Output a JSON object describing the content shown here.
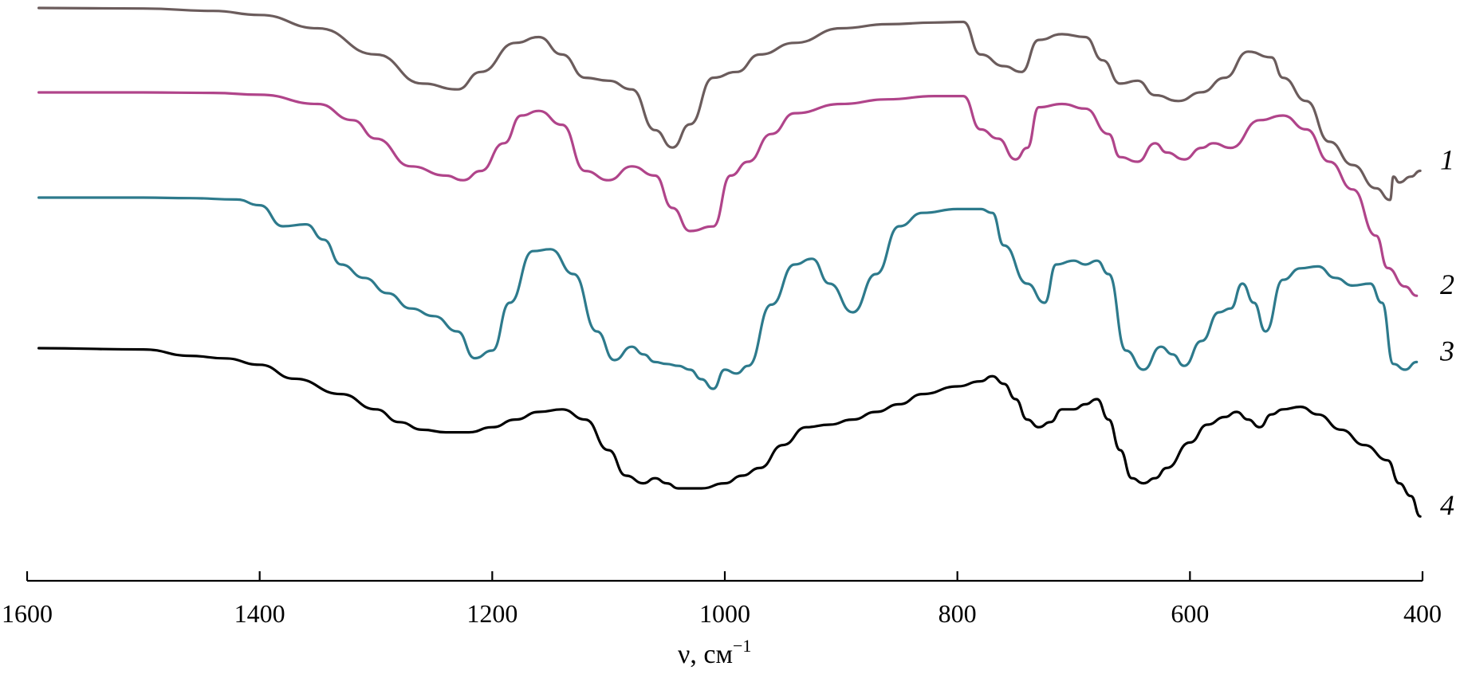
{
  "chart_data": {
    "type": "line",
    "xlabel": "ν, см",
    "xlabel_sup": "−1",
    "x_reversed": true,
    "xlim": [
      1600,
      400
    ],
    "ticks": [
      1600,
      1400,
      1200,
      1000,
      800,
      600,
      400
    ],
    "tick_labels": [
      "1600",
      "1400",
      "1200",
      "1000",
      "800",
      "600",
      "400"
    ],
    "y_axis_shown": false,
    "series": [
      {
        "name": "1",
        "color": "#6b5c5c",
        "x": [
          1590,
          1500,
          1440,
          1400,
          1350,
          1300,
          1260,
          1230,
          1210,
          1180,
          1160,
          1140,
          1120,
          1100,
          1080,
          1060,
          1045,
          1030,
          1010,
          990,
          970,
          940,
          900,
          860,
          820,
          795,
          780,
          760,
          745,
          730,
          710,
          690,
          675,
          660,
          645,
          630,
          610,
          590,
          570,
          550,
          530,
          520,
          500,
          480,
          460,
          440,
          428,
          425,
          420,
          410,
          402
        ],
        "y": [
          0,
          0.1,
          0.5,
          1.2,
          3.5,
          8,
          13,
          14,
          11,
          6,
          5,
          8,
          12,
          12.5,
          14,
          21,
          24,
          20,
          12,
          11,
          8,
          6,
          3.5,
          2.8,
          2.5,
          2.4,
          8,
          10,
          11,
          5.5,
          4.5,
          5,
          9,
          13,
          12.5,
          15,
          16,
          14.5,
          12,
          7.5,
          8.5,
          12,
          16,
          23,
          27,
          31,
          33,
          29,
          30,
          29,
          28
        ]
      },
      {
        "name": "2",
        "color": "#b0448a",
        "x": [
          1590,
          1500,
          1440,
          1400,
          1350,
          1320,
          1300,
          1270,
          1240,
          1225,
          1210,
          1190,
          1175,
          1160,
          1140,
          1120,
          1100,
          1080,
          1060,
          1045,
          1030,
          1010,
          995,
          980,
          960,
          940,
          900,
          860,
          820,
          795,
          780,
          765,
          750,
          740,
          730,
          710,
          690,
          670,
          660,
          645,
          630,
          620,
          605,
          590,
          580,
          565,
          540,
          520,
          500,
          480,
          460,
          440,
          430,
          415,
          405
        ],
        "y": [
          0,
          0,
          0.1,
          0.5,
          2.5,
          6,
          10,
          16,
          18,
          19,
          17,
          11,
          5,
          4,
          7,
          17,
          19,
          16,
          18,
          25,
          30,
          29,
          18,
          15,
          9,
          4.5,
          2.5,
          1.5,
          0.8,
          0.8,
          8,
          10,
          14.5,
          12,
          3.2,
          2.5,
          3.5,
          9,
          14,
          15,
          11,
          13,
          14.5,
          12,
          11,
          12,
          6,
          5,
          8,
          15,
          21,
          31,
          38,
          42,
          44
        ]
      },
      {
        "name": "3",
        "color": "#2d7a8c",
        "x": [
          1590,
          1500,
          1460,
          1420,
          1400,
          1380,
          1360,
          1345,
          1330,
          1310,
          1290,
          1270,
          1250,
          1230,
          1215,
          1200,
          1185,
          1165,
          1150,
          1130,
          1110,
          1095,
          1080,
          1070,
          1060,
          1050,
          1040,
          1030,
          1020,
          1010,
          1000,
          990,
          980,
          960,
          940,
          925,
          910,
          890,
          870,
          850,
          830,
          800,
          780,
          770,
          760,
          740,
          725,
          715,
          700,
          690,
          680,
          670,
          655,
          640,
          625,
          615,
          605,
          590,
          575,
          565,
          555,
          545,
          535,
          520,
          505,
          490,
          475,
          460,
          445,
          435,
          425,
          415,
          405
        ],
        "y": [
          0,
          0,
          0.3,
          1,
          4,
          15,
          14,
          22,
          35,
          42,
          50,
          58,
          62,
          70,
          84,
          80,
          55,
          28,
          27,
          40,
          70,
          85,
          78,
          82,
          86,
          87,
          88,
          90,
          95,
          100,
          90,
          92,
          88,
          56,
          35,
          32,
          45,
          60,
          40,
          15,
          8,
          6,
          6,
          8,
          25,
          45,
          55,
          35,
          33,
          35,
          33,
          40,
          80,
          90,
          78,
          82,
          88,
          75,
          60,
          58,
          45,
          55,
          70,
          43,
          37,
          36,
          42,
          46,
          45,
          55,
          87,
          90,
          86
        ]
      },
      {
        "name": "4",
        "color": "#000000",
        "x": [
          1590,
          1500,
          1460,
          1430,
          1400,
          1370,
          1330,
          1300,
          1280,
          1260,
          1240,
          1220,
          1200,
          1180,
          1160,
          1140,
          1120,
          1100,
          1085,
          1070,
          1060,
          1050,
          1040,
          1020,
          1000,
          985,
          970,
          950,
          930,
          910,
          890,
          870,
          850,
          830,
          800,
          780,
          770,
          760,
          750,
          740,
          730,
          720,
          710,
          700,
          690,
          680,
          670,
          660,
          650,
          640,
          630,
          620,
          600,
          585,
          570,
          560,
          550,
          540,
          530,
          520,
          505,
          490,
          470,
          450,
          430,
          420,
          410,
          402
        ],
        "y": [
          0,
          0.5,
          3,
          4,
          6.5,
          12,
          18,
          24,
          29,
          32,
          33,
          33,
          31,
          28,
          25,
          24,
          28,
          40,
          50,
          53,
          51,
          53,
          55,
          55,
          53,
          50,
          47,
          38,
          31,
          30,
          28,
          25,
          22,
          18,
          15,
          13,
          11,
          14,
          20,
          28,
          31,
          29,
          24,
          24,
          22,
          20,
          28,
          40,
          51,
          53,
          51,
          47,
          37,
          30,
          27,
          25,
          28,
          31,
          26,
          24,
          23,
          26,
          32,
          38,
          44,
          53,
          58,
          66
        ]
      }
    ],
    "curve_labels": [
      "1",
      "2",
      "3",
      "4"
    ]
  }
}
